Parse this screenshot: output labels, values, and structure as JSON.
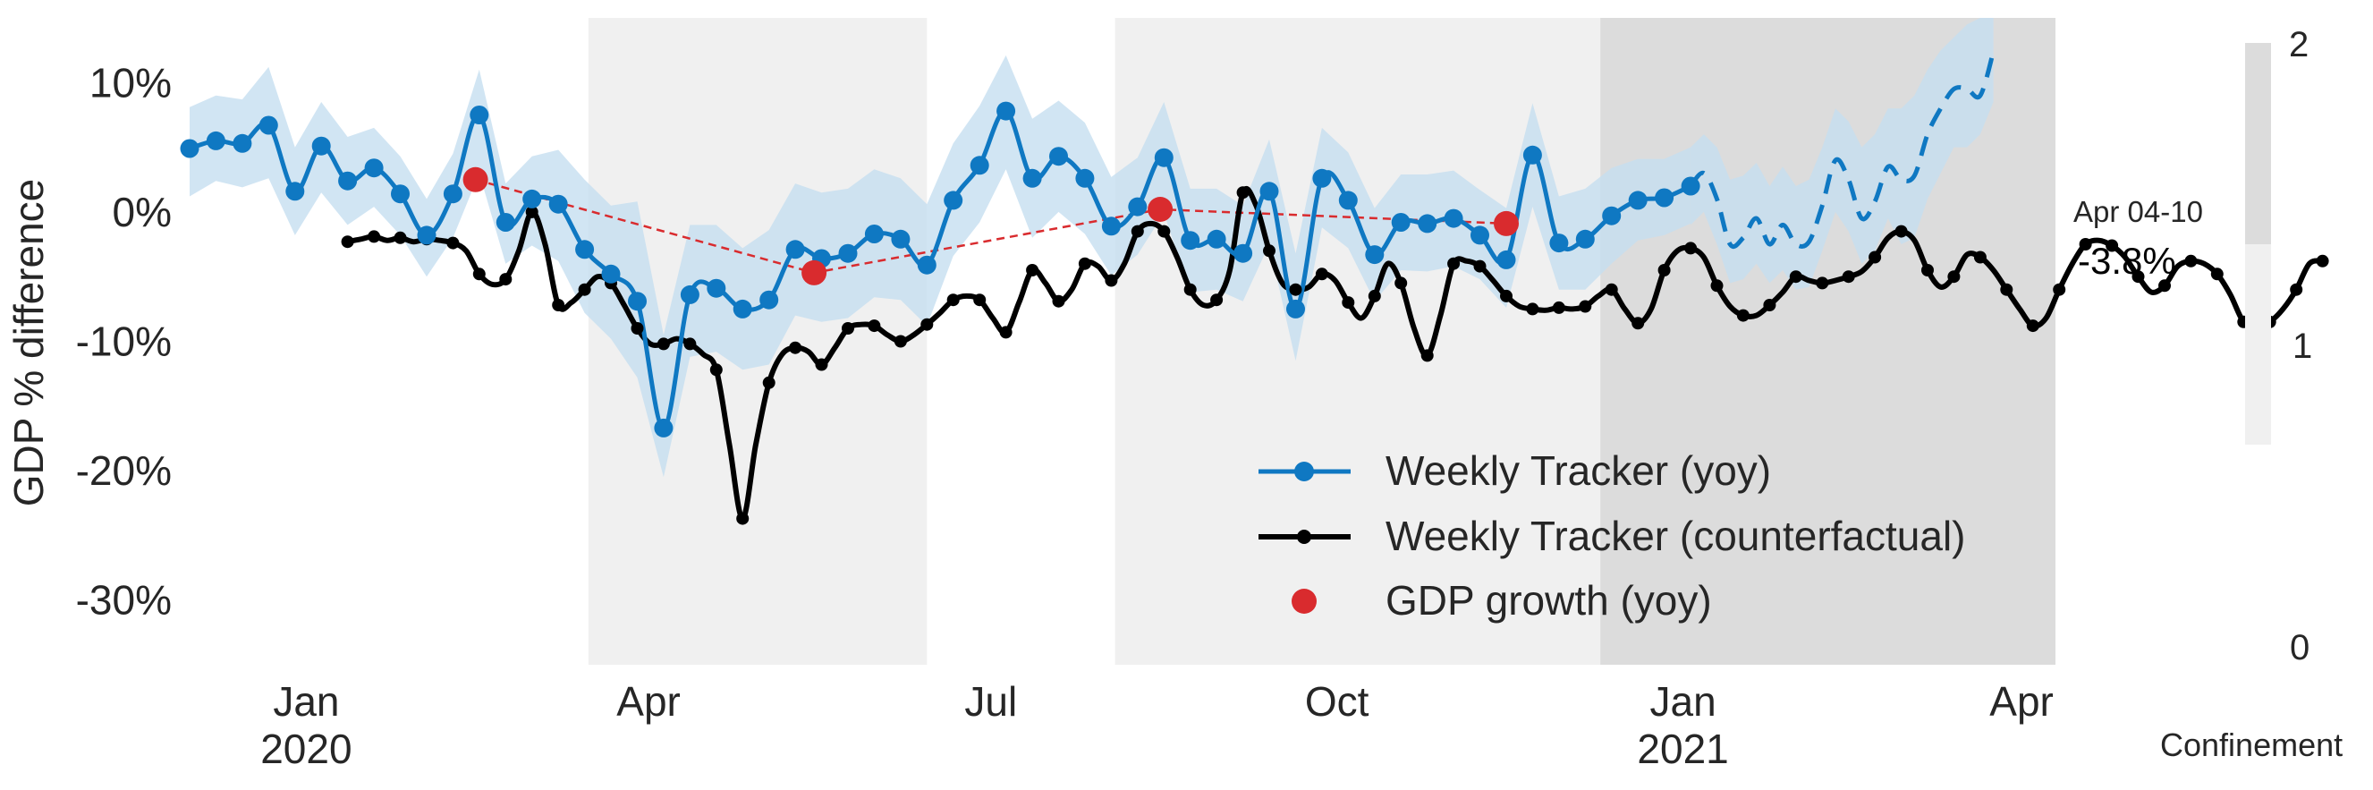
{
  "chart_data": {
    "type": "line",
    "xlabel": "",
    "ylabel": "GDP % difference",
    "ylim": [
      -35,
      15
    ],
    "yticks": [
      {
        "value": 10,
        "label": "10%"
      },
      {
        "value": 0,
        "label": "0%"
      },
      {
        "value": -10,
        "label": "-10%"
      },
      {
        "value": -20,
        "label": "-20%"
      },
      {
        "value": -30,
        "label": "-30%"
      }
    ],
    "xlim": [
      "2019-12-01",
      "2021-04-10"
    ],
    "xticks": [
      {
        "date": "2020-01-01",
        "line1": "Jan",
        "line2": "2020"
      },
      {
        "date": "2020-04-01",
        "line1": "Apr",
        "line2": ""
      },
      {
        "date": "2020-07-01",
        "line1": "Jul",
        "line2": ""
      },
      {
        "date": "2020-10-01",
        "line1": "Oct",
        "line2": ""
      },
      {
        "date": "2021-01-01",
        "line1": "Jan",
        "line2": "2021"
      },
      {
        "date": "2021-04-01",
        "line1": "Apr",
        "line2": ""
      }
    ],
    "grid": false,
    "legend_position": "bottom-right",
    "legend": [
      {
        "label": "Weekly Tracker (yoy)",
        "marker": "blue-line-dot"
      },
      {
        "label": "Weekly Tracker (counterfactual)",
        "marker": "black-line-dot"
      },
      {
        "label": "GDP growth (yoy)",
        "marker": "red-dot"
      }
    ],
    "confinement_bands": [
      {
        "start": "2020-03-16",
        "end": "2020-06-14",
        "level": 1
      },
      {
        "start": "2020-08-03",
        "end": "2020-12-10",
        "level": 1
      },
      {
        "start": "2020-12-10",
        "end": "2021-04-10",
        "level": 2
      }
    ],
    "confinement_scale": {
      "title": "Confinement",
      "ticks": [
        "2",
        "1",
        "0"
      ]
    },
    "annotation": {
      "date_label": "Apr 04-10",
      "value_label": "-3.8%"
    },
    "colors": {
      "tracker": "#0f78c2",
      "band": "#c6dff0",
      "counterfactual": "#000000",
      "gdp": "#d92b2e",
      "confinement_1": "#f0f0f0",
      "confinement_2": "#dcdcdc"
    },
    "series": [
      {
        "name": "Weekly Tracker (yoy)",
        "start_date": "2019-12-01",
        "step_days": 7,
        "values": [
          4.9,
          5.5,
          5.3,
          6.7,
          1.6,
          5.1,
          2.4,
          3.4,
          1.4,
          -1.8,
          1.4,
          7.5,
          -0.8,
          1.0,
          0.6,
          -2.9,
          -4.8,
          -6.9,
          -16.7,
          -6.4,
          -5.9,
          -7.5,
          -6.8,
          -2.9,
          -3.6,
          -3.2,
          -1.7,
          -2.1,
          -4.1,
          0.9,
          3.6,
          7.8,
          2.6,
          4.3,
          2.6,
          -1.1,
          0.4,
          4.2,
          -2.2,
          -2.1,
          -3.2,
          1.6,
          -7.5,
          2.6,
          0.9,
          -3.3,
          -0.8,
          -0.9,
          -0.5,
          -1.8,
          -3.7,
          4.4,
          -2.4,
          -2.1,
          -0.3,
          0.9,
          1.1,
          2.0
        ],
        "band_upper": [
          8.1,
          9.0,
          8.7,
          11.2,
          5.0,
          8.5,
          5.8,
          6.5,
          4.3,
          1.0,
          4.5,
          11.0,
          2.2,
          4.3,
          4.8,
          2.5,
          0.5,
          0.8,
          -9.5,
          -1.0,
          -1.0,
          -2.8,
          -1.4,
          2.2,
          1.5,
          1.8,
          3.3,
          2.6,
          0.6,
          5.3,
          8.2,
          12.1,
          7.2,
          8.6,
          6.9,
          2.7,
          4.2,
          8.5,
          1.8,
          1.8,
          0.5,
          5.6,
          -3.2,
          6.5,
          4.6,
          0.3,
          2.9,
          2.9,
          3.2,
          1.7,
          0.3,
          8.4,
          1.2,
          1.8,
          3.4,
          4.1,
          4.1,
          5.0
        ],
        "band_lower": [
          1.2,
          2.4,
          1.9,
          2.6,
          -1.8,
          1.5,
          -1.0,
          0.4,
          -1.8,
          -5.0,
          -2.0,
          3.0,
          -4.0,
          -2.6,
          -3.8,
          -7.8,
          -9.8,
          -12.8,
          -20.5,
          -11.2,
          -10.8,
          -12.2,
          -11.8,
          -8.0,
          -8.5,
          -8.2,
          -6.6,
          -6.8,
          -8.8,
          -3.4,
          -0.8,
          3.3,
          -2.0,
          0.0,
          -1.7,
          -4.9,
          -3.3,
          -0.1,
          -6.2,
          -6.0,
          -6.9,
          -2.5,
          -11.5,
          -1.2,
          -2.8,
          -6.9,
          -4.5,
          -4.6,
          -4.2,
          -5.2,
          -7.4,
          0.4,
          -6.0,
          -6.0,
          -4.0,
          -2.2,
          -1.8,
          -0.9
        ]
      },
      {
        "name": "Weekly Tracker (yoy) (projected)",
        "start_date": "2021-01-03",
        "step_days": 3.5,
        "values": [
          2.0,
          3.0,
          1.0,
          -2.5,
          -2.0,
          -0.5,
          -2.5,
          -1.0,
          -2.5,
          -2.3,
          0.5,
          4.0,
          2.5,
          -0.5,
          0.8,
          3.5,
          2.5,
          2.8,
          6.0,
          8.0,
          9.5,
          9.5,
          9.0,
          12.4
        ],
        "band_upper": [
          5.0,
          6.0,
          5.0,
          2.5,
          2.8,
          3.8,
          2.0,
          3.5,
          2.0,
          2.5,
          5.0,
          8.0,
          7.0,
          5.0,
          6.0,
          8.0,
          8.0,
          9.0,
          11.0,
          12.5,
          13.5,
          14.5,
          15.0,
          15.0
        ],
        "band_lower": [
          -1.0,
          0.0,
          -2.5,
          -5.5,
          -5.2,
          -4.0,
          -5.5,
          -4.5,
          -6.0,
          -5.8,
          -3.0,
          0.0,
          -1.5,
          -4.0,
          -3.0,
          -0.5,
          -2.5,
          -2.0,
          1.0,
          3.0,
          5.0,
          5.0,
          6.0,
          8.5
        ]
      },
      {
        "name": "Weekly Tracker (counterfactual)",
        "start_date": "2020-01-12",
        "step_days": 3.5,
        "values": [
          -2.3,
          -2.1,
          -1.9,
          -2.2,
          -2.0,
          -2.3,
          -2.1,
          -2.2,
          -2.4,
          -3.0,
          -4.8,
          -5.6,
          -5.2,
          -3.0,
          0.0,
          -2.5,
          -7.2,
          -7.0,
          -6.0,
          -5.0,
          -5.5,
          -7.2,
          -9.0,
          -10.2,
          -10.2,
          -9.8,
          -10.2,
          -11.0,
          -12.2,
          -18.0,
          -23.7,
          -18.0,
          -13.2,
          -11.0,
          -10.5,
          -10.8,
          -11.8,
          -10.5,
          -9.0,
          -8.7,
          -8.8,
          -9.5,
          -10.0,
          -9.5,
          -8.7,
          -7.8,
          -6.8,
          -6.5,
          -6.8,
          -8.2,
          -9.3,
          -7.0,
          -4.5,
          -5.5,
          -6.9,
          -6.0,
          -4.0,
          -4.2,
          -5.3,
          -4.0,
          -1.5,
          -0.9,
          -1.5,
          -3.5,
          -6.0,
          -7.2,
          -6.8,
          -4.5,
          1.5,
          0.5,
          -3.0,
          -5.5,
          -6.0,
          -5.8,
          -4.8,
          -5.3,
          -7.0,
          -8.2,
          -6.5,
          -4.0,
          -5.5,
          -9.0,
          -11.1,
          -8.0,
          -4.0,
          -3.8,
          -4.2,
          -5.3,
          -6.5,
          -7.3,
          -7.5,
          -7.6,
          -7.4,
          -7.5,
          -7.3,
          -6.5,
          -6.0,
          -7.5,
          -8.6,
          -7.5,
          -4.5,
          -3.0,
          -2.8,
          -3.5,
          -5.7,
          -7.3,
          -8.0,
          -8.0,
          -7.2,
          -6.2,
          -5.0,
          -5.3,
          -5.5,
          -5.3,
          -5.0,
          -4.6,
          -3.5,
          -2.0,
          -1.5,
          -2.2,
          -4.5,
          -5.8,
          -5.0,
          -3.3,
          -3.5,
          -4.5,
          -6.0,
          -7.5,
          -8.8,
          -8.2,
          -6.0,
          -4.0,
          -2.5,
          -2.2,
          -2.6,
          -3.5,
          -5.0,
          -6.2,
          -5.7,
          -4.2,
          -3.8,
          -4.0,
          -4.8,
          -6.4,
          -8.5,
          -8.9,
          -8.5,
          -7.5,
          -6.0,
          -4.0,
          -3.8
        ]
      },
      {
        "name": "GDP growth (yoy)",
        "points": [
          {
            "date": "2020-02-15",
            "value": 2.5
          },
          {
            "date": "2020-05-15",
            "value": -4.7
          },
          {
            "date": "2020-08-15",
            "value": 0.2
          },
          {
            "date": "2020-11-15",
            "value": -0.9
          }
        ]
      }
    ]
  }
}
